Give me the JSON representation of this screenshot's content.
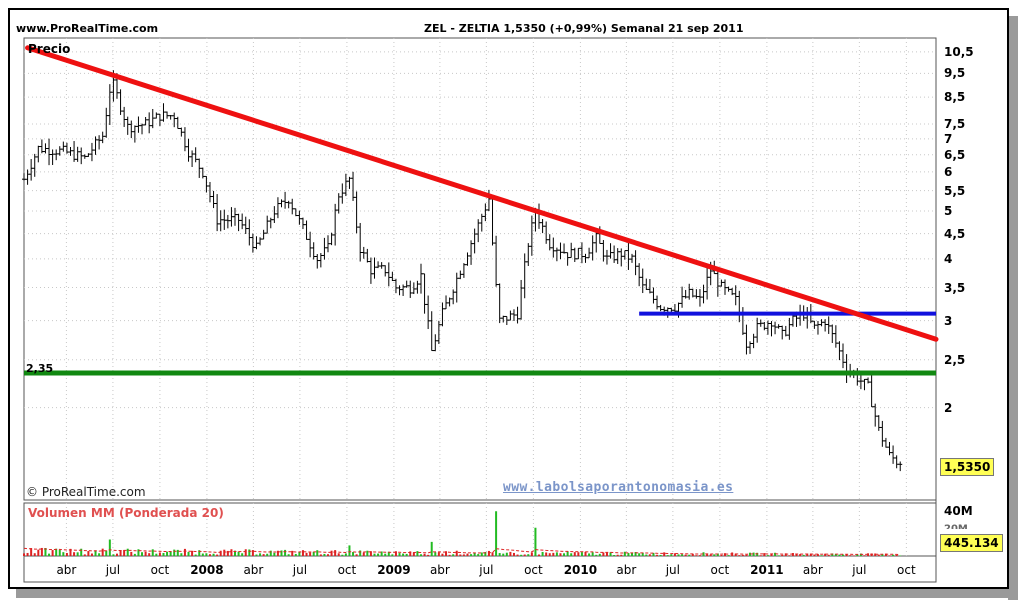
{
  "header": {
    "site": "www.ProRealTime.com",
    "title": "ZEL - ZELTIA   1,5350 (+0,99%)   Semanal  21 sep 2011"
  },
  "price_panel": {
    "label": "Precio",
    "copyright": "© ProRealTime.com",
    "watermark": "www.labolsaporantonomasia.es",
    "support_label": "2,35",
    "last_price": "1,5350"
  },
  "volume_panel": {
    "label": "Volumen MM (Ponderada 20)",
    "axis_top": "40M",
    "axis_second": "20M",
    "last_volume": "445.134"
  },
  "colors": {
    "trendline": "#ee1111",
    "support": "#118811",
    "resistance": "#1111dd",
    "volume_up": "#22bb22",
    "volume_down": "#dd2222",
    "price_bars": "#000000"
  },
  "chart_data": {
    "type": "ohlc",
    "scale": "log",
    "ylim": [
      1.3,
      11.2
    ],
    "y_ticks": [
      "10,5",
      "9,5",
      "8,5",
      "7,5",
      "7",
      "6,5",
      "6",
      "5,5",
      "5",
      "4,5",
      "4",
      "3,5",
      "3",
      "2,5",
      "2"
    ],
    "x_ticks": [
      {
        "label": "abr",
        "year": false
      },
      {
        "label": "jul",
        "year": false
      },
      {
        "label": "oct",
        "year": false
      },
      {
        "label": "2008",
        "year": true
      },
      {
        "label": "abr",
        "year": false
      },
      {
        "label": "jul",
        "year": false
      },
      {
        "label": "oct",
        "year": false
      },
      {
        "label": "2009",
        "year": true
      },
      {
        "label": "abr",
        "year": false
      },
      {
        "label": "jul",
        "year": false
      },
      {
        "label": "oct",
        "year": false
      },
      {
        "label": "2010",
        "year": true
      },
      {
        "label": "abr",
        "year": false
      },
      {
        "label": "jul",
        "year": false
      },
      {
        "label": "oct",
        "year": false
      },
      {
        "label": "2011",
        "year": true
      },
      {
        "label": "abr",
        "year": false
      },
      {
        "label": "jul",
        "year": false
      },
      {
        "label": "oct",
        "year": false
      }
    ],
    "x_range": [
      "2007-01-08",
      "2011-11-28"
    ],
    "weekly_close_anchors": [
      [
        "2007-01-08",
        5.8
      ],
      [
        "2007-02-05",
        6.7
      ],
      [
        "2007-03-26",
        6.6
      ],
      [
        "2007-05-07",
        6.4
      ],
      [
        "2007-06-11",
        7.1
      ],
      [
        "2007-06-25",
        8.8
      ],
      [
        "2007-07-02",
        9.0
      ],
      [
        "2007-07-30",
        7.4
      ],
      [
        "2007-09-03",
        7.5
      ],
      [
        "2007-10-01",
        7.8
      ],
      [
        "2007-10-29",
        7.8
      ],
      [
        "2007-11-26",
        6.6
      ],
      [
        "2007-12-24",
        6.0
      ],
      [
        "2008-01-21",
        4.8
      ],
      [
        "2008-03-03",
        4.8
      ],
      [
        "2008-04-07",
        4.2
      ],
      [
        "2008-05-12",
        5.0
      ],
      [
        "2008-06-09",
        5.3
      ],
      [
        "2008-07-07",
        4.6
      ],
      [
        "2008-08-04",
        4.0
      ],
      [
        "2008-08-25",
        4.2
      ],
      [
        "2008-09-15",
        5.4
      ],
      [
        "2008-10-06",
        5.8
      ],
      [
        "2008-10-27",
        4.2
      ],
      [
        "2008-11-17",
        3.8
      ],
      [
        "2008-12-15",
        3.8
      ],
      [
        "2009-01-05",
        3.5
      ],
      [
        "2009-02-02",
        3.5
      ],
      [
        "2009-02-23",
        3.7
      ],
      [
        "2009-03-16",
        2.6
      ],
      [
        "2009-04-06",
        3.1
      ],
      [
        "2009-05-11",
        3.8
      ],
      [
        "2009-06-08",
        4.5
      ],
      [
        "2009-07-06",
        5.3
      ],
      [
        "2009-07-20",
        3.5
      ],
      [
        "2009-07-27",
        3.0
      ],
      [
        "2009-08-31",
        3.1
      ],
      [
        "2009-09-21",
        4.3
      ],
      [
        "2009-10-05",
        5.0
      ],
      [
        "2009-11-02",
        4.3
      ],
      [
        "2009-12-07",
        4.1
      ],
      [
        "2010-01-11",
        4.1
      ],
      [
        "2010-02-01",
        4.4
      ],
      [
        "2010-02-22",
        4.0
      ],
      [
        "2010-03-22",
        4.1
      ],
      [
        "2010-04-12",
        4.0
      ],
      [
        "2010-05-03",
        3.5
      ],
      [
        "2010-06-07",
        3.2
      ],
      [
        "2010-07-05",
        3.2
      ],
      [
        "2010-08-02",
        3.4
      ],
      [
        "2010-08-23",
        3.3
      ],
      [
        "2010-09-13",
        3.8
      ],
      [
        "2010-10-04",
        3.5
      ],
      [
        "2010-11-01",
        3.3
      ],
      [
        "2010-11-22",
        2.7
      ],
      [
        "2010-12-13",
        2.9
      ],
      [
        "2011-01-10",
        3.0
      ],
      [
        "2011-01-31",
        2.8
      ],
      [
        "2011-02-21",
        3.0
      ],
      [
        "2011-03-14",
        3.1
      ],
      [
        "2011-04-04",
        2.9
      ],
      [
        "2011-04-25",
        3.0
      ],
      [
        "2011-05-16",
        2.7
      ],
      [
        "2011-06-06",
        2.4
      ],
      [
        "2011-06-27",
        2.3
      ],
      [
        "2011-07-18",
        2.2
      ],
      [
        "2011-08-08",
        1.8
      ],
      [
        "2011-08-29",
        1.6
      ],
      [
        "2011-09-19",
        1.535
      ]
    ],
    "lines": [
      {
        "name": "trendline",
        "from": [
          "2007-01-15",
          10.7
        ],
        "to": [
          "2011-11-28",
          2.75
        ]
      },
      {
        "name": "resistance",
        "from": [
          "2010-04-26",
          3.1
        ],
        "to": [
          "2011-11-28",
          3.1
        ]
      },
      {
        "name": "support",
        "value": 2.35
      }
    ],
    "volume": {
      "ylim": [
        0,
        45000000
      ],
      "spikes": [
        [
          "2009-07-20",
          38000000
        ],
        [
          "2009-10-05",
          24000000
        ],
        [
          "2007-06-25",
          14000000
        ],
        [
          "2009-03-16",
          12000000
        ],
        [
          "2008-10-06",
          9000000
        ]
      ],
      "baseline": 3500000,
      "last": 445134
    }
  }
}
